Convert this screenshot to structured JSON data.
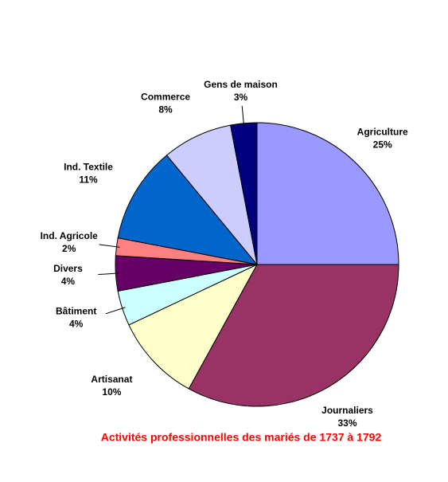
{
  "chart_data": {
    "type": "pie",
    "title": "Activités professionnelles des mariés de 1737 à 1792",
    "categories": [
      "Agriculture",
      "Journaliers",
      "Artisanat",
      "Bâtiment",
      "Divers",
      "Ind. Agricole",
      "Ind. Textile",
      "Commerce",
      "Gens de maison"
    ],
    "values": [
      25,
      33,
      10,
      4,
      4,
      2,
      11,
      8,
      3
    ],
    "value_labels": [
      "25%",
      "33%",
      "10%",
      "4%",
      "4%",
      "2%",
      "11%",
      "8%",
      "3%"
    ],
    "colors": [
      "#9999ff",
      "#993366",
      "#ffffcc",
      "#ccffff",
      "#660066",
      "#ff8080",
      "#0066cc",
      "#ccccff",
      "#000080"
    ]
  }
}
